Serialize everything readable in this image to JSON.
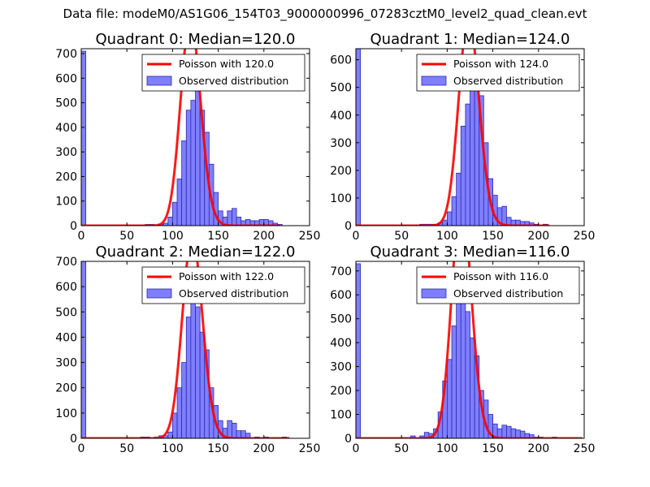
{
  "suptitle": "Data file: modeM0/AS1G06_154T03_9000000996_07283cztM0_level2_quad_clean.evt",
  "colors": {
    "bar_fill": "#7f7fff",
    "bar_edge": "#2a2ab0",
    "fit_line": "#ff0000"
  },
  "chart_data": [
    {
      "type": "bar",
      "title": "Quadrant 0: Median=120.0",
      "median": 120.0,
      "xlim": [
        0,
        250
      ],
      "ylim": [
        0,
        720
      ],
      "xticks": [
        0,
        50,
        100,
        150,
        200,
        250
      ],
      "yticks": [
        0,
        100,
        200,
        300,
        400,
        500,
        600,
        700
      ],
      "bin_width": 5,
      "legend": [
        "Poisson with 120.0",
        "Observed distribution"
      ],
      "legend_position": "top-right",
      "bins": [
        [
          0,
          710
        ],
        [
          70,
          5
        ],
        [
          75,
          5
        ],
        [
          85,
          5
        ],
        [
          90,
          10
        ],
        [
          95,
          35
        ],
        [
          100,
          95
        ],
        [
          105,
          190
        ],
        [
          110,
          345
        ],
        [
          115,
          470
        ],
        [
          120,
          510
        ],
        [
          125,
          560
        ],
        [
          130,
          470
        ],
        [
          135,
          380
        ],
        [
          140,
          250
        ],
        [
          145,
          135
        ],
        [
          150,
          60
        ],
        [
          155,
          35
        ],
        [
          160,
          60
        ],
        [
          165,
          70
        ],
        [
          170,
          35
        ],
        [
          175,
          20
        ],
        [
          180,
          25
        ],
        [
          185,
          20
        ],
        [
          190,
          20
        ],
        [
          195,
          25
        ],
        [
          200,
          25
        ],
        [
          205,
          20
        ],
        [
          210,
          10
        ],
        [
          215,
          5
        ]
      ],
      "fit_line_xmax": 218
    },
    {
      "type": "bar",
      "title": "Quadrant 1: Median=124.0",
      "median": 124.0,
      "xlim": [
        0,
        250
      ],
      "ylim": [
        0,
        640
      ],
      "xticks": [
        0,
        50,
        100,
        150,
        200,
        250
      ],
      "yticks": [
        0,
        100,
        200,
        300,
        400,
        500,
        600
      ],
      "bin_width": 5,
      "legend": [
        "Poisson with 124.0",
        "Observed distribution"
      ],
      "legend_position": "top-right",
      "bins": [
        [
          0,
          640
        ],
        [
          70,
          5
        ],
        [
          75,
          5
        ],
        [
          80,
          5
        ],
        [
          85,
          5
        ],
        [
          90,
          10
        ],
        [
          95,
          20
        ],
        [
          100,
          50
        ],
        [
          105,
          105
        ],
        [
          110,
          190
        ],
        [
          115,
          360
        ],
        [
          120,
          440
        ],
        [
          125,
          510
        ],
        [
          130,
          560
        ],
        [
          135,
          470
        ],
        [
          140,
          300
        ],
        [
          145,
          170
        ],
        [
          150,
          110
        ],
        [
          155,
          65
        ],
        [
          160,
          70
        ],
        [
          165,
          30
        ],
        [
          170,
          20
        ],
        [
          175,
          20
        ],
        [
          180,
          15
        ],
        [
          185,
          15
        ],
        [
          190,
          10
        ],
        [
          195,
          5
        ],
        [
          205,
          5
        ]
      ],
      "fit_line_xmax": 212
    },
    {
      "type": "bar",
      "title": "Quadrant 2: Median=122.0",
      "median": 122.0,
      "xlim": [
        0,
        250
      ],
      "ylim": [
        0,
        700
      ],
      "xticks": [
        0,
        50,
        100,
        150,
        200,
        250
      ],
      "yticks": [
        0,
        100,
        200,
        300,
        400,
        500,
        600,
        700
      ],
      "bin_width": 5,
      "legend": [
        "Poisson with 122.0",
        "Observed distribution"
      ],
      "legend_position": "top-right",
      "bins": [
        [
          0,
          700
        ],
        [
          65,
          5
        ],
        [
          70,
          5
        ],
        [
          80,
          5
        ],
        [
          85,
          10
        ],
        [
          90,
          10
        ],
        [
          95,
          25
        ],
        [
          100,
          100
        ],
        [
          105,
          200
        ],
        [
          110,
          300
        ],
        [
          115,
          480
        ],
        [
          120,
          600
        ],
        [
          125,
          520
        ],
        [
          130,
          420
        ],
        [
          135,
          350
        ],
        [
          140,
          200
        ],
        [
          145,
          130
        ],
        [
          150,
          70
        ],
        [
          155,
          40
        ],
        [
          160,
          70
        ],
        [
          165,
          60
        ],
        [
          170,
          30
        ],
        [
          175,
          30
        ],
        [
          180,
          20
        ],
        [
          190,
          5
        ],
        [
          200,
          5
        ],
        [
          220,
          5
        ]
      ],
      "fit_line_xmax": 228
    },
    {
      "type": "bar",
      "title": "Quadrant 3: Median=116.0",
      "median": 116.0,
      "xlim": [
        0,
        250
      ],
      "ylim": [
        0,
        740
      ],
      "xticks": [
        0,
        50,
        100,
        150,
        200,
        250
      ],
      "yticks": [
        0,
        100,
        200,
        300,
        400,
        500,
        600,
        700
      ],
      "bin_width": 5,
      "legend": [
        "Poisson with 116.0",
        "Observed distribution"
      ],
      "legend_position": "top-right",
      "bins": [
        [
          0,
          730
        ],
        [
          60,
          10
        ],
        [
          70,
          10
        ],
        [
          75,
          25
        ],
        [
          80,
          20
        ],
        [
          85,
          40
        ],
        [
          90,
          110
        ],
        [
          95,
          240
        ],
        [
          100,
          330
        ],
        [
          105,
          470
        ],
        [
          110,
          570
        ],
        [
          115,
          700
        ],
        [
          120,
          530
        ],
        [
          125,
          420
        ],
        [
          130,
          345
        ],
        [
          135,
          200
        ],
        [
          140,
          160
        ],
        [
          145,
          100
        ],
        [
          150,
          60
        ],
        [
          155,
          40
        ],
        [
          160,
          55
        ],
        [
          165,
          50
        ],
        [
          170,
          40
        ],
        [
          175,
          35
        ],
        [
          180,
          30
        ],
        [
          185,
          20
        ],
        [
          190,
          15
        ],
        [
          195,
          5
        ],
        [
          200,
          5
        ],
        [
          215,
          5
        ]
      ],
      "fit_line_xmax": 248
    }
  ]
}
